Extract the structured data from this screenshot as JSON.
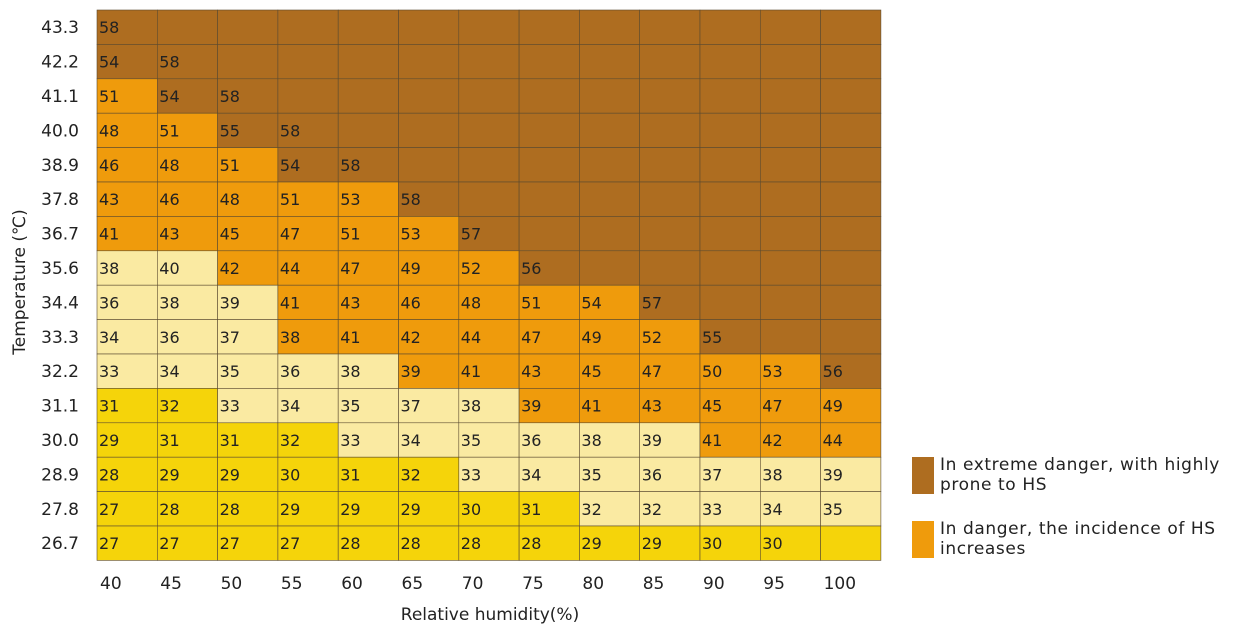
{
  "chart_data": {
    "type": "heatmap",
    "xlabel": "Relative humidity(%)",
    "ylabel": "Temperature (℃)",
    "x": [
      "40",
      "45",
      "50",
      "55",
      "60",
      "65",
      "70",
      "75",
      "80",
      "85",
      "90",
      "95",
      "100"
    ],
    "y": [
      "43.3",
      "42.2",
      "41.1",
      "40.0",
      "38.9",
      "37.8",
      "36.7",
      "35.6",
      "34.4",
      "33.3",
      "32.2",
      "31.1",
      "30.0",
      "28.9",
      "27.8",
      "26.7"
    ],
    "values": [
      [
        "58",
        "",
        "",
        "",
        "",
        "",
        "",
        "",
        "",
        "",
        "",
        "",
        ""
      ],
      [
        "54",
        "58",
        "",
        "",
        "",
        "",
        "",
        "",
        "",
        "",
        "",
        "",
        ""
      ],
      [
        "51",
        "54",
        "58",
        "",
        "",
        "",
        "",
        "",
        "",
        "",
        "",
        "",
        ""
      ],
      [
        "48",
        "51",
        "55",
        "58",
        "",
        "",
        "",
        "",
        "",
        "",
        "",
        "",
        ""
      ],
      [
        "46",
        "48",
        "51",
        "54",
        "58",
        "",
        "",
        "",
        "",
        "",
        "",
        "",
        ""
      ],
      [
        "43",
        "46",
        "48",
        "51",
        "53",
        "58",
        "",
        "",
        "",
        "",
        "",
        "",
        ""
      ],
      [
        "41",
        "43",
        "45",
        "47",
        "51",
        "53",
        "57",
        "",
        "",
        "",
        "",
        "",
        ""
      ],
      [
        "38",
        "40",
        "42",
        "44",
        "47",
        "49",
        "52",
        "56",
        "",
        "",
        "",
        "",
        ""
      ],
      [
        "36",
        "38",
        "39",
        "41",
        "43",
        "46",
        "48",
        "51",
        "54",
        "57",
        "",
        "",
        ""
      ],
      [
        "34",
        "36",
        "37",
        "38",
        "41",
        "42",
        "44",
        "47",
        "49",
        "52",
        "55",
        "",
        ""
      ],
      [
        "33",
        "34",
        "35",
        "36",
        "38",
        "39",
        "41",
        "43",
        "45",
        "47",
        "50",
        "53",
        "56"
      ],
      [
        "31",
        "32",
        "33",
        "34",
        "35",
        "37",
        "38",
        "39",
        "41",
        "43",
        "45",
        "47",
        "49"
      ],
      [
        "29",
        "31",
        "31",
        "32",
        "33",
        "34",
        "35",
        "36",
        "38",
        "39",
        "41",
        "42",
        "44"
      ],
      [
        "28",
        "29",
        "29",
        "30",
        "31",
        "32",
        "33",
        "34",
        "35",
        "36",
        "37",
        "38",
        "39"
      ],
      [
        "27",
        "28",
        "28",
        "29",
        "29",
        "29",
        "30",
        "31",
        "32",
        "32",
        "33",
        "34",
        "35"
      ],
      [
        "27",
        "27",
        "27",
        "27",
        "28",
        "28",
        "28",
        "28",
        "29",
        "29",
        "30",
        "30",
        ""
      ]
    ],
    "categories_grid": [
      [
        "E",
        "E",
        "E",
        "E",
        "E",
        "E",
        "E",
        "E",
        "E",
        "E",
        "E",
        "E",
        "E"
      ],
      [
        "E",
        "E",
        "E",
        "E",
        "E",
        "E",
        "E",
        "E",
        "E",
        "E",
        "E",
        "E",
        "E"
      ],
      [
        "D",
        "E",
        "E",
        "E",
        "E",
        "E",
        "E",
        "E",
        "E",
        "E",
        "E",
        "E",
        "E"
      ],
      [
        "D",
        "D",
        "E",
        "E",
        "E",
        "E",
        "E",
        "E",
        "E",
        "E",
        "E",
        "E",
        "E"
      ],
      [
        "D",
        "D",
        "D",
        "E",
        "E",
        "E",
        "E",
        "E",
        "E",
        "E",
        "E",
        "E",
        "E"
      ],
      [
        "D",
        "D",
        "D",
        "D",
        "D",
        "E",
        "E",
        "E",
        "E",
        "E",
        "E",
        "E",
        "E"
      ],
      [
        "D",
        "D",
        "D",
        "D",
        "D",
        "D",
        "E",
        "E",
        "E",
        "E",
        "E",
        "E",
        "E"
      ],
      [
        "C",
        "C",
        "D",
        "D",
        "D",
        "D",
        "D",
        "E",
        "E",
        "E",
        "E",
        "E",
        "E"
      ],
      [
        "C",
        "C",
        "C",
        "D",
        "D",
        "D",
        "D",
        "D",
        "D",
        "E",
        "E",
        "E",
        "E"
      ],
      [
        "C",
        "C",
        "C",
        "D",
        "D",
        "D",
        "D",
        "D",
        "D",
        "D",
        "E",
        "E",
        "E"
      ],
      [
        "C",
        "C",
        "C",
        "C",
        "C",
        "D",
        "D",
        "D",
        "D",
        "D",
        "D",
        "D",
        "E"
      ],
      [
        "Y",
        "Y",
        "C",
        "C",
        "C",
        "C",
        "C",
        "D",
        "D",
        "D",
        "D",
        "D",
        "D"
      ],
      [
        "Y",
        "Y",
        "Y",
        "Y",
        "C",
        "C",
        "C",
        "C",
        "C",
        "C",
        "D",
        "D",
        "D"
      ],
      [
        "Y",
        "Y",
        "Y",
        "Y",
        "Y",
        "Y",
        "C",
        "C",
        "C",
        "C",
        "C",
        "C",
        "C"
      ],
      [
        "Y",
        "Y",
        "Y",
        "Y",
        "Y",
        "Y",
        "Y",
        "Y",
        "C",
        "C",
        "C",
        "C",
        "C"
      ],
      [
        "Y",
        "Y",
        "Y",
        "Y",
        "Y",
        "Y",
        "Y",
        "Y",
        "Y",
        "Y",
        "Y",
        "Y",
        "Y"
      ]
    ],
    "colors": {
      "E": "#ae6d20",
      "D": "#ef9b0c",
      "C": "#faeaa2",
      "Y": "#f5d40a"
    },
    "grid": true
  },
  "legend": [
    {
      "text": "In extreme danger, with highly prone to HS",
      "color": "#ae6d20"
    },
    {
      "text": "In danger, the incidence of HS increases",
      "color": "#ef9b0c"
    }
  ]
}
